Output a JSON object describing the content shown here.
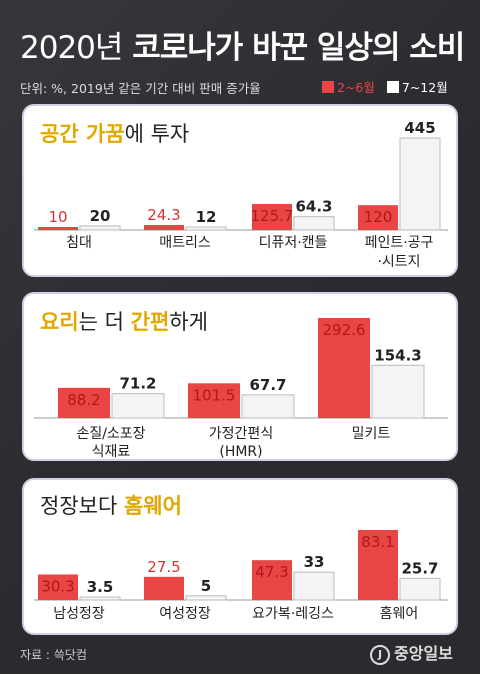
{
  "header": {
    "title_year": "2020년",
    "title_rest": "코로나가 바꾼 일상의 소비",
    "unit": "단위: %, 2019년 같은 기간 대비 판매 증가율",
    "legend": [
      {
        "label": "2~6월",
        "color": "#e84545"
      },
      {
        "label": "7~12월",
        "color": "#ffffff"
      }
    ]
  },
  "chart_data": [
    {
      "type": "bar",
      "title_parts": [
        {
          "text": "공간 가꿈",
          "style": "hl"
        },
        {
          "text": "에 투자",
          "style": "normal"
        }
      ],
      "categories": [
        [
          "침대"
        ],
        [
          "매트리스"
        ],
        [
          "디퓨저·캔들"
        ],
        [
          "페인트·공구",
          "·시트지"
        ]
      ],
      "series": [
        {
          "name": "2~6월",
          "values": [
            10,
            24.3,
            125.7,
            120
          ]
        },
        {
          "name": "7~12월",
          "values": [
            20,
            12,
            64.3,
            445
          ]
        }
      ],
      "ylim": [
        0,
        445
      ]
    },
    {
      "type": "bar",
      "title_parts": [
        {
          "text": "요리",
          "style": "hl"
        },
        {
          "text": "는 더 ",
          "style": "normal"
        },
        {
          "text": "간편",
          "style": "hl"
        },
        {
          "text": "하게",
          "style": "normal"
        }
      ],
      "categories": [
        [
          "손질/소포장",
          "식재료"
        ],
        [
          "가정간편식",
          "(HMR)"
        ],
        [
          "밀키트"
        ]
      ],
      "series": [
        {
          "name": "2~6월",
          "values": [
            88.2,
            101.5,
            292.6
          ]
        },
        {
          "name": "7~12월",
          "values": [
            71.2,
            67.7,
            154.3
          ]
        }
      ],
      "ylim": [
        0,
        292.6
      ]
    },
    {
      "type": "bar",
      "title_parts": [
        {
          "text": "정장보다 ",
          "style": "normal"
        },
        {
          "text": "홈웨어",
          "style": "hl"
        }
      ],
      "categories": [
        [
          "남성정장"
        ],
        [
          "여성정장"
        ],
        [
          "요가복·레깅스"
        ],
        [
          "홈웨어"
        ]
      ],
      "series": [
        {
          "name": "2~6월",
          "values": [
            30.3,
            27.5,
            47.3,
            83.1
          ]
        },
        {
          "name": "7~12월",
          "values": [
            3.5,
            5,
            33,
            25.7
          ]
        }
      ],
      "ylim": [
        0,
        83.1
      ]
    }
  ],
  "footer": {
    "source": "자료 : 쓱닷컴",
    "logo_mark": "J",
    "logo_text": "중앙일보"
  }
}
